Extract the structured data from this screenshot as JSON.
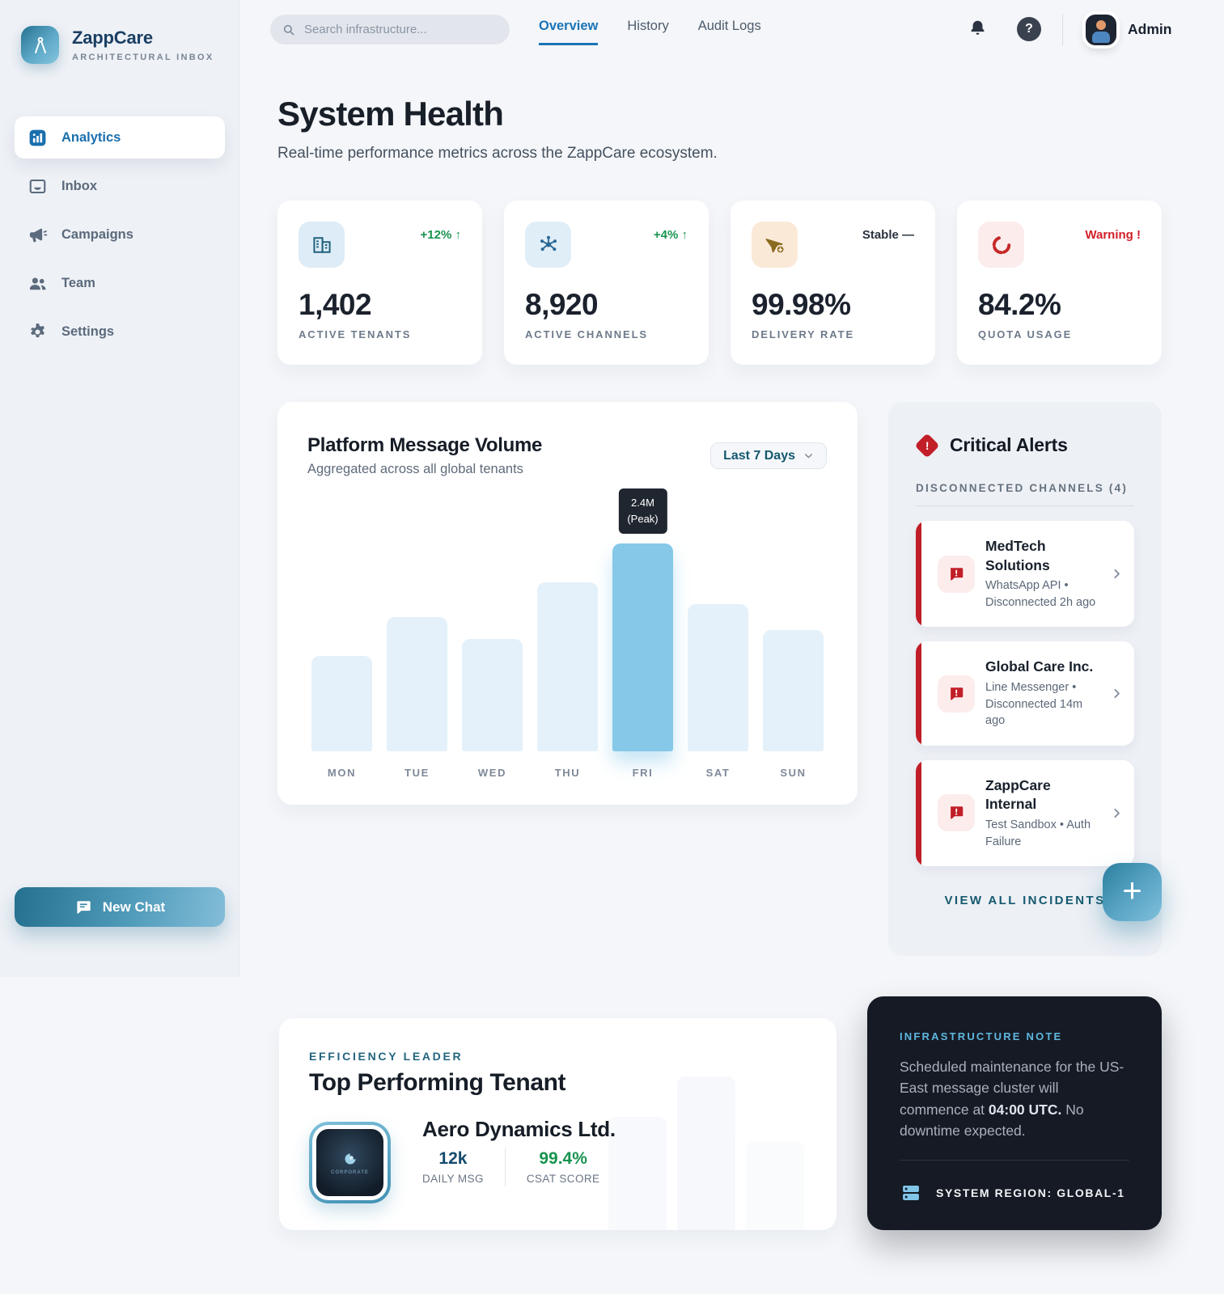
{
  "brand": {
    "name": "ZappCare",
    "tagline": "ARCHITECTURAL INBOX"
  },
  "sidebar": {
    "items": [
      {
        "label": "Analytics",
        "active": true
      },
      {
        "label": "Inbox",
        "active": false
      },
      {
        "label": "Campaigns",
        "active": false
      },
      {
        "label": "Team",
        "active": false
      },
      {
        "label": "Settings",
        "active": false
      }
    ],
    "new_chat_label": "New Chat"
  },
  "header": {
    "search_placeholder": "Search infrastructure...",
    "tabs": [
      {
        "label": "Overview",
        "active": true
      },
      {
        "label": "History",
        "active": false
      },
      {
        "label": "Audit Logs",
        "active": false
      }
    ],
    "user_label": "Admin"
  },
  "page": {
    "title": "System Health",
    "subtitle": "Real-time performance metrics across the ZappCare ecosystem."
  },
  "stats": [
    {
      "value": "1,402",
      "label": "ACTIVE TENANTS",
      "trend": "+12% ↑",
      "status": "up",
      "icon": "building-icon"
    },
    {
      "value": "8,920",
      "label": "ACTIVE CHANNELS",
      "trend": "+4% ↑",
      "status": "up",
      "icon": "hub-icon"
    },
    {
      "value": "99.98%",
      "label": "DELIVERY RATE",
      "trend": "Stable —",
      "status": "stable",
      "icon": "send-icon"
    },
    {
      "value": "84.2%",
      "label": "QUOTA USAGE",
      "trend": "Warning !",
      "status": "warning",
      "icon": "loader-icon"
    }
  ],
  "chart_data": {
    "type": "bar",
    "title": "Platform Message Volume",
    "subtitle": "Aggregated across all global tenants",
    "range_label": "Last 7 Days",
    "categories": [
      "MON",
      "TUE",
      "WED",
      "THU",
      "FRI",
      "SAT",
      "SUN"
    ],
    "values": [
      1.1,
      1.55,
      1.3,
      1.95,
      2.4,
      1.7,
      1.4
    ],
    "unit": "millions of messages",
    "ylim": [
      0,
      2.4
    ],
    "highlight_index": 4,
    "annotation": "2.4M (Peak)",
    "grid": false,
    "legend": false,
    "bar_color": "#e4f1fa",
    "highlight_color": "#85c8e8"
  },
  "chart_ui": {
    "tooltip_value": "2.4M",
    "tooltip_label": "(Peak)"
  },
  "alerts": {
    "title": "Critical Alerts",
    "section_label": "DISCONNECTED CHANNELS (4)",
    "items": [
      {
        "title": "MedTech Solutions",
        "meta": "WhatsApp API • Disconnected 2h ago"
      },
      {
        "title": "Global Care Inc.",
        "meta": "Line Messenger • Disconnected 14m ago"
      },
      {
        "title": "ZappCare Internal",
        "meta": "Test Sandbox • Auth Failure"
      }
    ],
    "footer_label": "VIEW ALL INCIDENTS"
  },
  "tenant": {
    "kicker": "EFFICIENCY LEADER",
    "title": "Top Performing Tenant",
    "name": "Aero Dynamics Ltd.",
    "logo_caption": "CORPORATE",
    "metrics": [
      {
        "value": "12k",
        "label": "DAILY MSG"
      },
      {
        "value": "99.4%",
        "label": "CSAT SCORE"
      }
    ]
  },
  "note": {
    "kicker": "INFRASTRUCTURE NOTE",
    "body_prefix": "Scheduled maintenance for the US-East message cluster will commence at ",
    "body_strong": "04:00 UTC.",
    "body_suffix": " No downtime expected.",
    "region": "SYSTEM REGION: GLOBAL-1"
  },
  "glyphs": {
    "plus": "+",
    "help": "?",
    "exclamation": "!"
  },
  "colors": {
    "accent_teal": "#2b7fa0",
    "tab_active": "#1a73b5",
    "green": "#18934f",
    "red": "#c21e28",
    "bar": "#e4f1fa",
    "bar_highlight": "#85c8e8",
    "dark_card": "#151a24",
    "sidebar_bg": "#eef1f6",
    "page_bg": "#f4f6f9"
  }
}
